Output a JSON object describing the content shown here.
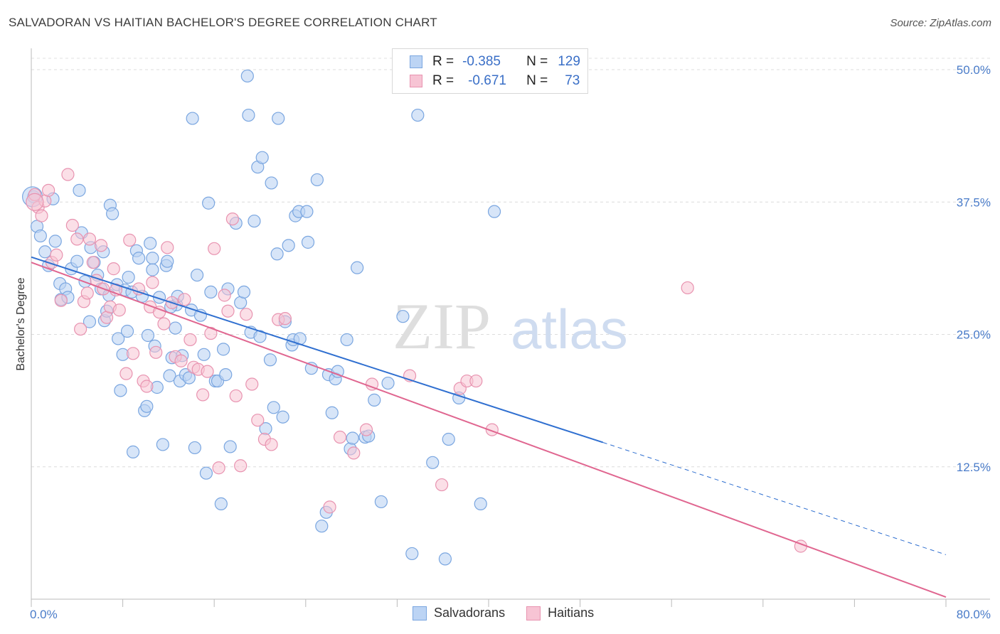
{
  "title": "SALVADORAN VS HAITIAN BACHELOR'S DEGREE CORRELATION CHART",
  "source": "Source: ZipAtlas.com",
  "watermark": {
    "part1": "ZIP",
    "part2": "atlas"
  },
  "legend": {
    "rows": [
      {
        "r_label": "R =",
        "r_value": "-0.385",
        "n_label": "N =",
        "n_value": "129"
      },
      {
        "r_label": "R =",
        "r_value": "-0.671",
        "n_label": "N =",
        "n_value": "73"
      }
    ]
  },
  "bottom_legend": [
    "Salvadorans",
    "Haitians"
  ],
  "colors": {
    "salvadoran_fill": "#bcd4f4",
    "salvadoran_stroke": "#7aa6e0",
    "salvadoran_line": "#2f6fd0",
    "haitian_fill": "#f7c4d4",
    "haitian_stroke": "#e893b0",
    "haitian_line": "#e06690",
    "tick_label": "#4a7cc9"
  },
  "chart_data": {
    "type": "scatter",
    "xlabel": "",
    "ylabel": "Bachelor's Degree",
    "xlim": [
      0,
      80
    ],
    "ylim": [
      0,
      50
    ],
    "x_tick_labels": [
      "0.0%",
      "80.0%"
    ],
    "y_ticks": [
      12.5,
      25.0,
      37.5,
      50.0
    ],
    "y_tick_labels": [
      "12.5%",
      "25.0%",
      "37.5%",
      "50.0%"
    ],
    "grid": "horizontal-dashed",
    "legend_position": "top-center",
    "series": [
      {
        "name": "Salvadorans",
        "r": -0.385,
        "n": 129,
        "trend": {
          "x0": 0,
          "y0": 32.3,
          "x1": 50,
          "y1": 14.8,
          "dashed_to_x": 80,
          "dashed_to_y": 4.2
        },
        "points": [
          [
            0.2,
            38.0
          ],
          [
            0.5,
            35.2
          ],
          [
            0.8,
            34.3
          ],
          [
            1.2,
            32.8
          ],
          [
            1.5,
            31.5
          ],
          [
            1.9,
            37.8
          ],
          [
            2.1,
            33.8
          ],
          [
            2.5,
            29.8
          ],
          [
            2.6,
            28.3
          ],
          [
            3.0,
            29.3
          ],
          [
            3.2,
            28.5
          ],
          [
            3.5,
            31.2
          ],
          [
            4.0,
            31.9
          ],
          [
            4.2,
            38.6
          ],
          [
            4.4,
            34.6
          ],
          [
            4.7,
            30.0
          ],
          [
            5.1,
            26.2
          ],
          [
            5.2,
            33.2
          ],
          [
            5.5,
            31.8
          ],
          [
            5.8,
            30.6
          ],
          [
            6.1,
            29.3
          ],
          [
            6.3,
            32.8
          ],
          [
            6.4,
            26.3
          ],
          [
            6.6,
            27.2
          ],
          [
            6.8,
            28.7
          ],
          [
            6.9,
            37.2
          ],
          [
            7.1,
            36.4
          ],
          [
            7.5,
            29.7
          ],
          [
            7.6,
            24.6
          ],
          [
            7.8,
            19.7
          ],
          [
            8.0,
            23.1
          ],
          [
            8.2,
            29.2
          ],
          [
            8.4,
            25.3
          ],
          [
            8.5,
            30.4
          ],
          [
            8.9,
            13.9
          ],
          [
            8.8,
            29.0
          ],
          [
            9.2,
            32.9
          ],
          [
            9.4,
            32.2
          ],
          [
            9.7,
            28.6
          ],
          [
            9.9,
            17.8
          ],
          [
            10.1,
            18.2
          ],
          [
            10.2,
            24.9
          ],
          [
            10.4,
            33.6
          ],
          [
            10.6,
            32.2
          ],
          [
            10.8,
            23.9
          ],
          [
            11.0,
            20.0
          ],
          [
            11.2,
            28.5
          ],
          [
            11.5,
            14.6
          ],
          [
            11.8,
            31.5
          ],
          [
            11.9,
            31.9
          ],
          [
            12.1,
            21.1
          ],
          [
            12.3,
            22.8
          ],
          [
            12.6,
            25.6
          ],
          [
            12.7,
            27.8
          ],
          [
            12.8,
            28.6
          ],
          [
            13.0,
            20.6
          ],
          [
            13.2,
            23.0
          ],
          [
            13.5,
            21.2
          ],
          [
            13.8,
            20.9
          ],
          [
            14.0,
            27.3
          ],
          [
            14.1,
            45.4
          ],
          [
            14.3,
            14.3
          ],
          [
            14.5,
            30.6
          ],
          [
            14.8,
            26.8
          ],
          [
            15.1,
            23.1
          ],
          [
            15.3,
            11.9
          ],
          [
            15.5,
            37.4
          ],
          [
            15.7,
            29.0
          ],
          [
            16.1,
            20.6
          ],
          [
            16.3,
            20.6
          ],
          [
            16.6,
            9.0
          ],
          [
            16.8,
            23.6
          ],
          [
            17.0,
            21.2
          ],
          [
            17.2,
            29.3
          ],
          [
            17.4,
            14.4
          ],
          [
            17.9,
            35.5
          ],
          [
            18.3,
            28.0
          ],
          [
            18.6,
            29.0
          ],
          [
            18.9,
            49.4
          ],
          [
            19.0,
            45.7
          ],
          [
            19.2,
            25.2
          ],
          [
            19.5,
            35.7
          ],
          [
            19.8,
            40.8
          ],
          [
            20.0,
            24.8
          ],
          [
            20.2,
            41.7
          ],
          [
            20.5,
            16.1
          ],
          [
            20.9,
            22.6
          ],
          [
            21.2,
            18.1
          ],
          [
            21.5,
            32.6
          ],
          [
            21.6,
            45.4
          ],
          [
            22.0,
            17.2
          ],
          [
            22.2,
            26.2
          ],
          [
            22.5,
            33.4
          ],
          [
            22.8,
            24.0
          ],
          [
            22.9,
            24.5
          ],
          [
            23.1,
            36.2
          ],
          [
            23.4,
            36.6
          ],
          [
            23.5,
            24.6
          ],
          [
            24.1,
            36.6
          ],
          [
            24.2,
            33.7
          ],
          [
            24.5,
            21.8
          ],
          [
            25.0,
            39.6
          ],
          [
            25.4,
            6.9
          ],
          [
            25.8,
            8.2
          ],
          [
            26.0,
            21.2
          ],
          [
            26.3,
            17.6
          ],
          [
            26.6,
            20.8
          ],
          [
            26.8,
            21.5
          ],
          [
            27.6,
            24.5
          ],
          [
            27.9,
            14.2
          ],
          [
            28.1,
            15.2
          ],
          [
            28.5,
            31.3
          ],
          [
            29.2,
            15.3
          ],
          [
            29.5,
            15.4
          ],
          [
            30.0,
            18.8
          ],
          [
            30.6,
            9.2
          ],
          [
            31.2,
            20.4
          ],
          [
            32.5,
            26.7
          ],
          [
            33.3,
            4.3
          ],
          [
            33.8,
            45.7
          ],
          [
            35.1,
            12.9
          ],
          [
            36.2,
            3.8
          ],
          [
            36.5,
            15.1
          ],
          [
            37.4,
            19.0
          ],
          [
            39.3,
            9.0
          ],
          [
            40.5,
            36.6
          ],
          [
            21.0,
            39.3
          ],
          [
            10.6,
            31.1
          ],
          [
            12.2,
            27.6
          ]
        ]
      },
      {
        "name": "Haitians",
        "r": -0.671,
        "n": 73,
        "trend": {
          "x0": 0,
          "y0": 31.8,
          "x1": 80,
          "y1": 0.2
        },
        "points": [
          [
            0.3,
            38.2
          ],
          [
            0.6,
            37.0
          ],
          [
            0.9,
            36.2
          ],
          [
            1.2,
            37.6
          ],
          [
            1.5,
            38.6
          ],
          [
            1.8,
            31.8
          ],
          [
            2.2,
            32.5
          ],
          [
            2.6,
            28.2
          ],
          [
            3.2,
            40.1
          ],
          [
            3.6,
            35.3
          ],
          [
            4.0,
            34.0
          ],
          [
            4.3,
            25.5
          ],
          [
            4.6,
            28.1
          ],
          [
            4.9,
            28.9
          ],
          [
            5.1,
            34.0
          ],
          [
            5.4,
            31.8
          ],
          [
            5.7,
            30.1
          ],
          [
            6.1,
            33.4
          ],
          [
            6.3,
            29.3
          ],
          [
            6.6,
            26.6
          ],
          [
            6.9,
            27.6
          ],
          [
            7.2,
            31.2
          ],
          [
            7.4,
            29.2
          ],
          [
            7.7,
            27.3
          ],
          [
            8.3,
            21.3
          ],
          [
            8.6,
            33.9
          ],
          [
            8.9,
            23.2
          ],
          [
            9.4,
            29.3
          ],
          [
            9.8,
            20.6
          ],
          [
            10.1,
            20.1
          ],
          [
            10.4,
            27.6
          ],
          [
            10.6,
            29.9
          ],
          [
            10.9,
            23.3
          ],
          [
            11.2,
            27.1
          ],
          [
            11.6,
            26.0
          ],
          [
            11.9,
            33.2
          ],
          [
            12.3,
            28.0
          ],
          [
            12.6,
            22.9
          ],
          [
            13.1,
            22.5
          ],
          [
            13.4,
            28.3
          ],
          [
            13.9,
            24.5
          ],
          [
            14.2,
            21.9
          ],
          [
            14.6,
            21.7
          ],
          [
            15.0,
            19.3
          ],
          [
            15.4,
            21.5
          ],
          [
            15.7,
            25.1
          ],
          [
            16.0,
            33.1
          ],
          [
            16.4,
            12.4
          ],
          [
            16.9,
            28.7
          ],
          [
            17.2,
            27.2
          ],
          [
            17.6,
            35.9
          ],
          [
            17.9,
            19.2
          ],
          [
            18.3,
            12.6
          ],
          [
            18.8,
            26.9
          ],
          [
            19.3,
            20.3
          ],
          [
            19.8,
            16.9
          ],
          [
            20.4,
            15.1
          ],
          [
            21.0,
            14.6
          ],
          [
            21.6,
            26.4
          ],
          [
            22.2,
            26.5
          ],
          [
            26.1,
            8.7
          ],
          [
            27.0,
            15.3
          ],
          [
            28.2,
            13.8
          ],
          [
            29.3,
            16.0
          ],
          [
            29.8,
            20.3
          ],
          [
            33.1,
            21.1
          ],
          [
            35.9,
            10.8
          ],
          [
            37.5,
            19.9
          ],
          [
            38.1,
            20.6
          ],
          [
            38.9,
            20.6
          ],
          [
            40.3,
            16.0
          ],
          [
            57.4,
            29.4
          ],
          [
            67.3,
            5.0
          ]
        ]
      }
    ]
  }
}
